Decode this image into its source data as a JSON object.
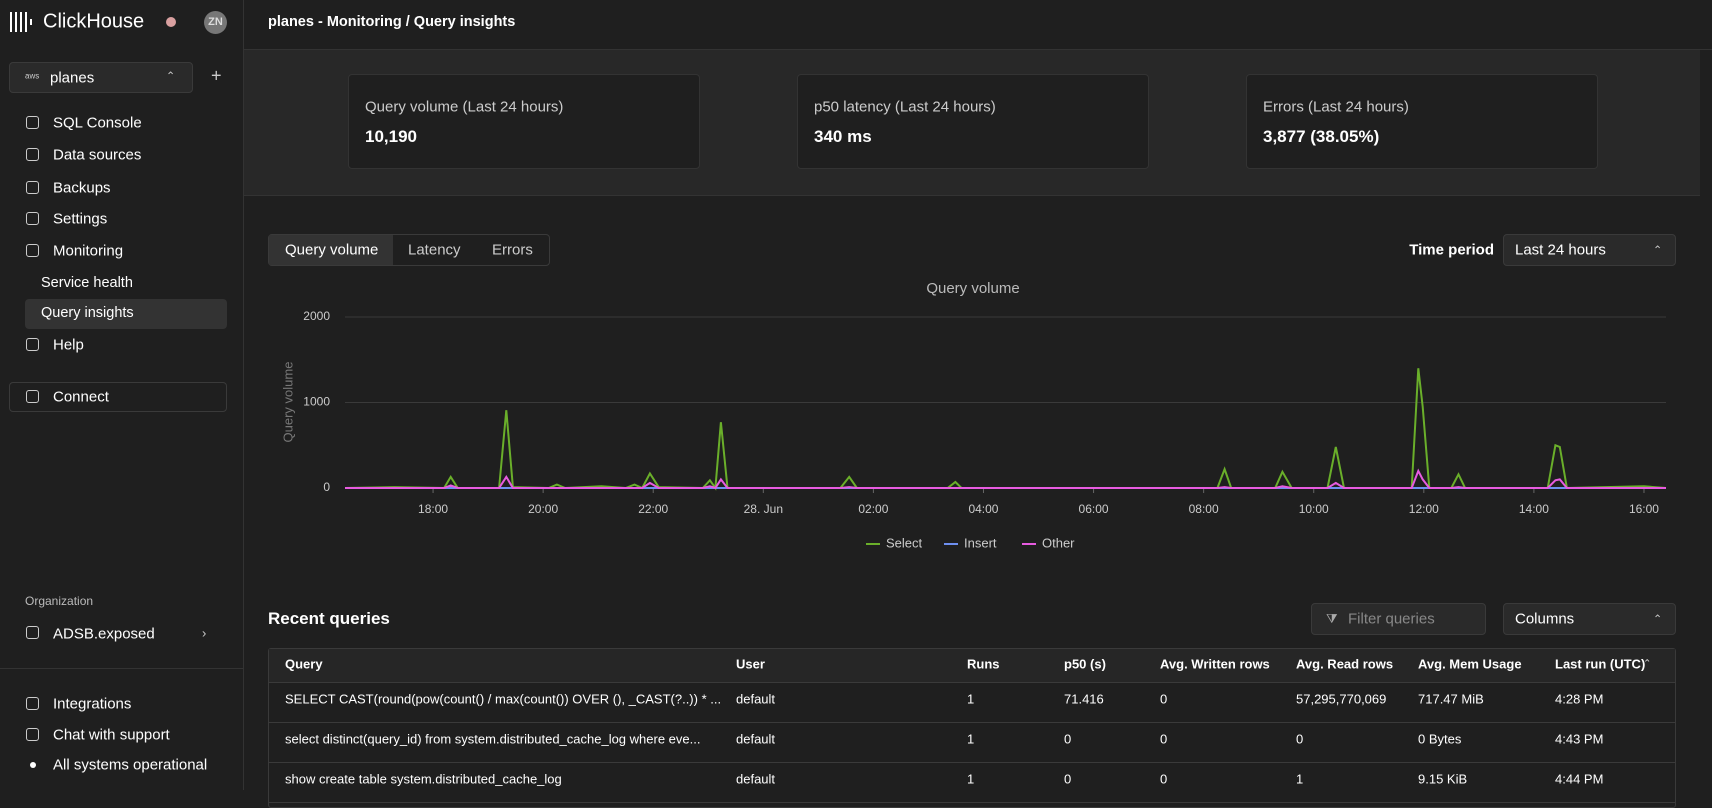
{
  "sidebar": {
    "brand": "ClickHouse",
    "avatar": "ZN",
    "provider": "aws",
    "service": "planes",
    "nav": [
      "SQL Console",
      "Data sources",
      "Backups",
      "Settings",
      "Monitoring"
    ],
    "subnav": [
      "Service health",
      "Query insights"
    ],
    "help": "Help",
    "connect": "Connect",
    "org_label": "Organization",
    "org": "ADSB.exposed",
    "footer": [
      "Integrations",
      "Chat with support",
      "All systems operational"
    ]
  },
  "header": {
    "title": "planes - Monitoring / Query insights"
  },
  "stats": [
    {
      "label": "Query volume (Last 24 hours)",
      "value": "10,190"
    },
    {
      "label": "p50 latency (Last 24 hours)",
      "value": "340 ms"
    },
    {
      "label": "Errors (Last 24 hours)",
      "value": "3,877 (38.05%)"
    }
  ],
  "tabs": [
    "Query volume",
    "Latency",
    "Errors"
  ],
  "time_period": {
    "label": "Time period",
    "value": "Last 24 hours"
  },
  "chart_data": {
    "type": "line",
    "title": "Query volume",
    "y_label": "Query volume",
    "x": [
      16.4,
      17.3,
      18.2,
      18.32,
      18.45,
      19.2,
      19.33,
      19.45,
      20.1,
      20.25,
      20.4,
      21.06,
      21.5,
      21.66,
      21.8,
      21.94,
      22.1,
      22.9,
      23.03,
      23.13,
      23.23,
      23.35,
      25.4,
      25.56,
      25.7,
      27.35,
      27.49,
      27.6,
      32.25,
      32.38,
      32.5,
      33.3,
      33.43,
      33.6,
      34.25,
      34.4,
      34.55,
      35.78,
      35.9,
      35.98,
      36.1,
      36.5,
      36.63,
      36.75,
      38.25,
      38.39,
      38.47,
      38.6,
      40,
      40.4
    ],
    "series": [
      {
        "name": "Select",
        "color": "#6aaf2a",
        "values": [
          0,
          10,
          0,
          130,
          0,
          0,
          910,
          10,
          0,
          40,
          0,
          20,
          0,
          40,
          0,
          170,
          10,
          0,
          90,
          0,
          770,
          0,
          0,
          130,
          0,
          0,
          70,
          0,
          0,
          220,
          0,
          0,
          190,
          0,
          0,
          480,
          0,
          0,
          1400,
          950,
          0,
          0,
          160,
          0,
          0,
          500,
          480,
          0,
          20,
          0
        ]
      },
      {
        "name": "Insert",
        "color": "#6e8ff0",
        "values": [
          0,
          0,
          0,
          0,
          0,
          0,
          0,
          0,
          0,
          0,
          0,
          0,
          0,
          0,
          0,
          0,
          0,
          0,
          0,
          0,
          0,
          0,
          0,
          0,
          0,
          0,
          0,
          0,
          0,
          0,
          0,
          0,
          0,
          0,
          0,
          0,
          0,
          0,
          0,
          0,
          0,
          0,
          0,
          0,
          0,
          0,
          0,
          0,
          0,
          0
        ]
      },
      {
        "name": "Other",
        "color": "#e75be0",
        "values": [
          0,
          0,
          0,
          30,
          0,
          0,
          130,
          0,
          0,
          0,
          0,
          0,
          0,
          0,
          0,
          60,
          0,
          0,
          20,
          0,
          100,
          0,
          0,
          10,
          0,
          0,
          0,
          0,
          0,
          10,
          0,
          0,
          20,
          0,
          0,
          60,
          0,
          0,
          200,
          100,
          0,
          0,
          10,
          0,
          0,
          90,
          100,
          0,
          0,
          0
        ]
      }
    ],
    "xlim": [
      16.4,
      40.4
    ],
    "xticks": [
      {
        "value": 18,
        "label": "18:00"
      },
      {
        "value": 20,
        "label": "20:00"
      },
      {
        "value": 22,
        "label": "22:00"
      },
      {
        "value": 24,
        "label": "28. Jun"
      },
      {
        "value": 26,
        "label": "02:00"
      },
      {
        "value": 28,
        "label": "04:00"
      },
      {
        "value": 30,
        "label": "06:00"
      },
      {
        "value": 32,
        "label": "08:00"
      },
      {
        "value": 34,
        "label": "10:00"
      },
      {
        "value": 36,
        "label": "12:00"
      },
      {
        "value": 38,
        "label": "14:00"
      },
      {
        "value": 40,
        "label": "16:00"
      }
    ],
    "ylim": [
      0,
      2000
    ],
    "yticks": [
      0,
      1000,
      2000
    ],
    "grid": true,
    "legend": "bottom"
  },
  "recent": {
    "title": "Recent queries",
    "filter_placeholder": "Filter queries",
    "columns_button": "Columns"
  },
  "table": {
    "columns": [
      "Query",
      "User",
      "Runs",
      "p50 (s)",
      "Avg. Written rows",
      "Avg. Read rows",
      "Avg. Mem Usage",
      "Last run (UTC)"
    ],
    "rows": [
      [
        "SELECT CAST(round(pow(count() / max(count()) OVER (), _CAST(?..)) * ...",
        "default",
        "1",
        "71.416",
        "0",
        "57,295,770,069",
        "717.47 MiB",
        "4:28 PM"
      ],
      [
        "select distinct(query_id) from system.distributed_cache_log where eve...",
        "default",
        "1",
        "0",
        "0",
        "0",
        "0 Bytes",
        "4:43 PM"
      ],
      [
        "show create table system.distributed_cache_log",
        "default",
        "1",
        "0",
        "0",
        "1",
        "9.15 KiB",
        "4:44 PM"
      ]
    ]
  }
}
